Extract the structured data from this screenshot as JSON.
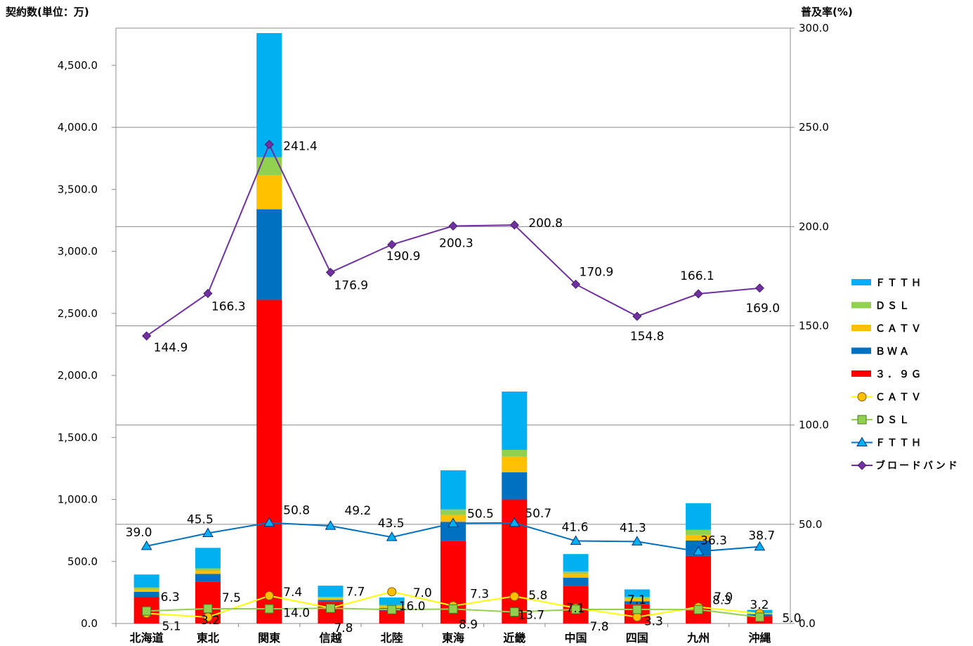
{
  "chart_data": {
    "type": "bar+line",
    "title": "",
    "ylabel_left": "契約数(単位：万)",
    "ylabel_right": "普及率(%)",
    "ylim_left": [
      0,
      4800
    ],
    "ylim_right": [
      0,
      300
    ],
    "yticks_left": [
      "0.0",
      "500.0",
      "1,000.0",
      "1,500.0",
      "2,000.0",
      "2,500.0",
      "3,000.0",
      "3,500.0",
      "4,000.0",
      "4,500.0"
    ],
    "yticks_right": [
      "0.0",
      "50.0",
      "100.0",
      "150.0",
      "200.0",
      "250.0",
      "300.0"
    ],
    "grid": true,
    "legend_position": "right",
    "categories": [
      "北海道",
      "東北",
      "関東",
      "信越",
      "北陸",
      "東海",
      "近畿",
      "中国",
      "四国",
      "九州",
      "沖縄"
    ],
    "bar_series": [
      {
        "name": "３．９G",
        "color": "#ff0000",
        "values": [
          215,
          335,
          2610,
          175,
          105,
          665,
          1000,
          305,
          155,
          545,
          60
        ]
      },
      {
        "name": "BWA",
        "color": "#0070c0",
        "values": [
          40,
          65,
          730,
          15,
          20,
          155,
          220,
          65,
          25,
          125,
          15
        ]
      },
      {
        "name": "CATV",
        "color": "#ffc000",
        "values": [
          20,
          25,
          275,
          15,
          15,
          55,
          125,
          30,
          20,
          45,
          5
        ]
      },
      {
        "name": "DSL",
        "color": "#92d050",
        "values": [
          15,
          20,
          145,
          10,
          10,
          45,
          55,
          20,
          15,
          40,
          5
        ]
      },
      {
        "name": "FTTH",
        "color": "#00b0f0",
        "values": [
          105,
          165,
          1000,
          90,
          60,
          315,
          470,
          140,
          60,
          215,
          25
        ]
      }
    ],
    "line_series": [
      {
        "name": "ブロードバンド",
        "color": "#7030a0",
        "marker": "diamond",
        "values": [
          144.9,
          166.3,
          241.4,
          176.9,
          190.9,
          200.3,
          200.8,
          170.9,
          154.8,
          166.1,
          169.0
        ],
        "labels": [
          "144.9",
          "166.3",
          "241.4",
          "176.9",
          "190.9",
          "200.3",
          "200.8",
          "170.9",
          "154.8",
          "166.1",
          "169.0"
        ]
      },
      {
        "name": "ＦＴＴＨ",
        "color": "#0070c0",
        "marker": "triangle",
        "values": [
          39.0,
          45.5,
          50.8,
          49.2,
          43.5,
          50.5,
          50.7,
          41.6,
          41.3,
          36.3,
          38.7
        ],
        "labels": [
          "39.0",
          "45.5",
          "50.8",
          "49.2",
          "43.5",
          "50.5",
          "50.7",
          "41.6",
          "41.3",
          "36.3",
          "38.7"
        ]
      },
      {
        "name": "ＤＳＬ",
        "color": "#92d050",
        "marker": "square",
        "values": [
          6.3,
          7.5,
          7.4,
          7.7,
          7.0,
          7.3,
          5.8,
          7.1,
          7.1,
          7.0,
          3.2
        ],
        "labels": [
          "6.3",
          "7.5",
          "7.4",
          "7.7",
          "7.0",
          "7.3",
          "5.8",
          "7.1",
          "7.1",
          "7.0",
          "3.2"
        ]
      },
      {
        "name": "ＣＡＴＶ",
        "color": "#ffff00",
        "marker": "circle",
        "values": [
          5.1,
          3.2,
          14.0,
          7.8,
          16.0,
          8.9,
          13.7,
          7.8,
          3.3,
          8.3,
          5.0
        ],
        "labels": [
          "5.1",
          "3.2",
          "14.0",
          "7.8",
          "16.0",
          "8.9",
          "13.7",
          "7.8",
          "3.3",
          "8.3",
          "5.0"
        ]
      }
    ],
    "legend": [
      {
        "label": "ＦＴＴＨ",
        "kind": "bar",
        "color": "#00b0f0"
      },
      {
        "label": "ＤＳＬ",
        "kind": "bar",
        "color": "#92d050"
      },
      {
        "label": "ＣＡＴＶ",
        "kind": "bar",
        "color": "#ffc000"
      },
      {
        "label": "ＢＷＡ",
        "kind": "bar",
        "color": "#0070c0"
      },
      {
        "label": "３．９Ｇ",
        "kind": "bar",
        "color": "#ff0000"
      },
      {
        "label": "ＣＡＴＶ",
        "kind": "line",
        "marker": "circle",
        "color": "#ffff00"
      },
      {
        "label": "ＤＳＬ",
        "kind": "line",
        "marker": "square",
        "color": "#92d050"
      },
      {
        "label": "ＦＴＴＨ",
        "kind": "line",
        "marker": "triangle",
        "color": "#0070c0"
      },
      {
        "label": "ブロードバンド",
        "kind": "line",
        "marker": "diamond",
        "color": "#7030a0"
      }
    ]
  }
}
